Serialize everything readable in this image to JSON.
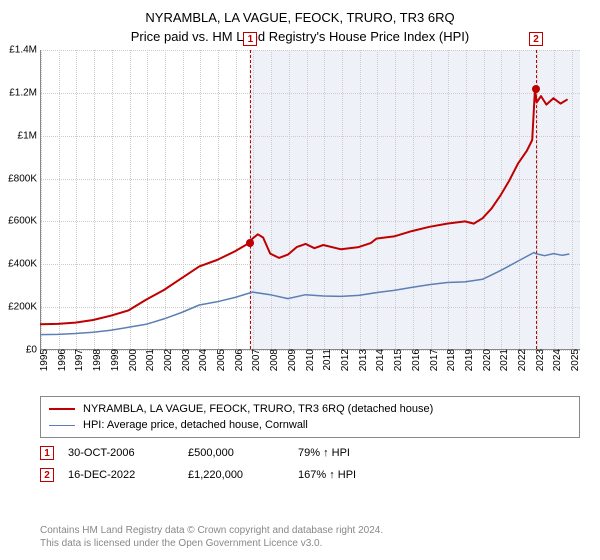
{
  "title_line1": "NYRAMBLA, LA VAGUE, FEOCK, TRURO, TR3 6RQ",
  "title_line2": "Price paid vs. HM Land Registry's House Price Index (HPI)",
  "chart": {
    "type": "line",
    "background_color": "#ffffff",
    "grid_color": "#cccccc",
    "axis_color": "#888888",
    "shade_color": "#e8edf5",
    "text_color": "#000000",
    "font_family": "Arial",
    "title_fontsize": 13,
    "tick_fontsize": 10,
    "x_min": 1995,
    "x_max": 2025.5,
    "x_ticks": [
      1995,
      1996,
      1997,
      1998,
      1999,
      2000,
      2001,
      2002,
      2003,
      2004,
      2005,
      2006,
      2007,
      2008,
      2009,
      2010,
      2011,
      2012,
      2013,
      2014,
      2015,
      2016,
      2017,
      2018,
      2019,
      2020,
      2021,
      2022,
      2023,
      2024,
      2025
    ],
    "y_min": 0,
    "y_max": 1400000,
    "y_ticks": [
      {
        "v": 0,
        "label": "£0"
      },
      {
        "v": 200000,
        "label": "£200K"
      },
      {
        "v": 400000,
        "label": "£400K"
      },
      {
        "v": 600000,
        "label": "£600K"
      },
      {
        "v": 800000,
        "label": "£800K"
      },
      {
        "v": 1000000,
        "label": "£1M"
      },
      {
        "v": 1200000,
        "label": "£1.2M"
      },
      {
        "v": 1400000,
        "label": "£1.4M"
      }
    ],
    "shade_from_x": 2006.83,
    "series": [
      {
        "id": "property",
        "label": "NYRAMBLA, LA VAGUE, FEOCK, TRURO, TR3 6RQ (detached house)",
        "color": "#c00000",
        "line_width": 2,
        "data": [
          [
            1995,
            120000
          ],
          [
            1996,
            122000
          ],
          [
            1997,
            128000
          ],
          [
            1998,
            140000
          ],
          [
            1999,
            160000
          ],
          [
            2000,
            185000
          ],
          [
            2001,
            235000
          ],
          [
            2002,
            280000
          ],
          [
            2003,
            335000
          ],
          [
            2004,
            390000
          ],
          [
            2005,
            420000
          ],
          [
            2006,
            460000
          ],
          [
            2006.83,
            500000
          ],
          [
            2007,
            520000
          ],
          [
            2007.3,
            540000
          ],
          [
            2007.6,
            525000
          ],
          [
            2008,
            450000
          ],
          [
            2008.5,
            430000
          ],
          [
            2009,
            445000
          ],
          [
            2009.5,
            480000
          ],
          [
            2010,
            495000
          ],
          [
            2010.5,
            475000
          ],
          [
            2011,
            490000
          ],
          [
            2012,
            470000
          ],
          [
            2013,
            480000
          ],
          [
            2013.7,
            500000
          ],
          [
            2014,
            520000
          ],
          [
            2015,
            530000
          ],
          [
            2016,
            555000
          ],
          [
            2017,
            575000
          ],
          [
            2018,
            590000
          ],
          [
            2019,
            600000
          ],
          [
            2019.5,
            590000
          ],
          [
            2020,
            615000
          ],
          [
            2020.5,
            660000
          ],
          [
            2021,
            720000
          ],
          [
            2021.5,
            790000
          ],
          [
            2022,
            870000
          ],
          [
            2022.5,
            930000
          ],
          [
            2022.8,
            980000
          ],
          [
            2022.96,
            1220000
          ],
          [
            2023.05,
            1155000
          ],
          [
            2023.3,
            1185000
          ],
          [
            2023.6,
            1145000
          ],
          [
            2024,
            1175000
          ],
          [
            2024.4,
            1150000
          ],
          [
            2024.8,
            1170000
          ]
        ]
      },
      {
        "id": "hpi",
        "label": "HPI: Average price, detached house, Cornwall",
        "color": "#5b7fb4",
        "line_width": 1.5,
        "data": [
          [
            1995,
            72000
          ],
          [
            1996,
            73000
          ],
          [
            1997,
            77000
          ],
          [
            1998,
            83000
          ],
          [
            1999,
            92000
          ],
          [
            2000,
            106000
          ],
          [
            2001,
            120000
          ],
          [
            2002,
            145000
          ],
          [
            2003,
            175000
          ],
          [
            2004,
            210000
          ],
          [
            2005,
            225000
          ],
          [
            2006,
            245000
          ],
          [
            2007,
            270000
          ],
          [
            2008,
            258000
          ],
          [
            2009,
            240000
          ],
          [
            2010,
            258000
          ],
          [
            2011,
            252000
          ],
          [
            2012,
            250000
          ],
          [
            2013,
            255000
          ],
          [
            2014,
            268000
          ],
          [
            2015,
            278000
          ],
          [
            2016,
            292000
          ],
          [
            2017,
            305000
          ],
          [
            2018,
            315000
          ],
          [
            2019,
            318000
          ],
          [
            2020,
            330000
          ],
          [
            2021,
            370000
          ],
          [
            2022,
            415000
          ],
          [
            2022.9,
            455000
          ],
          [
            2023,
            450000
          ],
          [
            2023.5,
            440000
          ],
          [
            2024,
            450000
          ],
          [
            2024.5,
            442000
          ],
          [
            2024.9,
            448000
          ]
        ]
      }
    ],
    "markers": [
      {
        "n": "1",
        "x": 2006.83,
        "y": 500000
      },
      {
        "n": "2",
        "x": 2022.96,
        "y": 1220000
      }
    ]
  },
  "legend": {
    "series1": "NYRAMBLA, LA VAGUE, FEOCK, TRURO, TR3 6RQ (detached house)",
    "series2": "HPI: Average price, detached house, Cornwall"
  },
  "events": [
    {
      "n": "1",
      "date": "30-OCT-2006",
      "price": "£500,000",
      "pct": "79% ↑ HPI"
    },
    {
      "n": "2",
      "date": "16-DEC-2022",
      "price": "£1,220,000",
      "pct": "167% ↑ HPI"
    }
  ],
  "footer_line1": "Contains HM Land Registry data © Crown copyright and database right 2024.",
  "footer_line2": "This data is licensed under the Open Government Licence v3.0."
}
